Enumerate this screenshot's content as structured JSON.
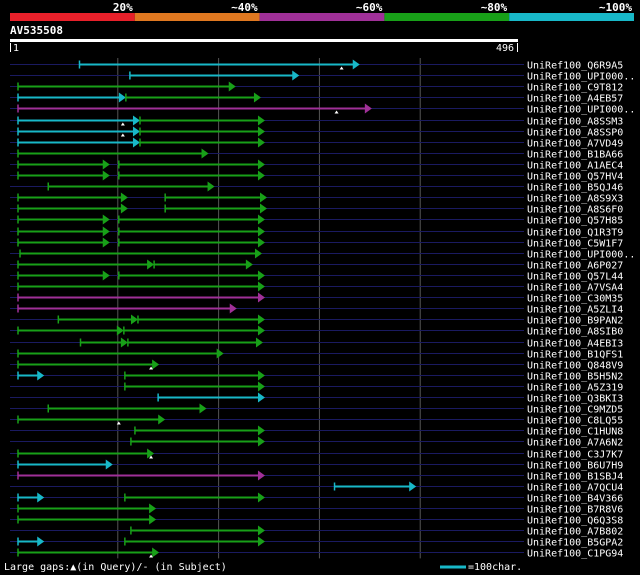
{
  "legend_scale": {
    "ticks": [
      "20%",
      "~40%",
      "~60%",
      "~80%",
      "~100%"
    ],
    "colors": [
      "#e8202a",
      "#e07820",
      "#a03098",
      "#18a018",
      "#18b8c8"
    ]
  },
  "query": {
    "id": "AV535508",
    "start_label": "1",
    "end_label": "496",
    "length": 496
  },
  "colors": {
    "background": "#000000",
    "row_line": "#1a1a60",
    "grid": "#555555",
    "gap_marker": "#ffffff",
    "label": "#ffffff"
  },
  "footer": {
    "gaps_text": "Large gaps:▲(in Query)/- (in Subject)",
    "scale_text": "=100char."
  },
  "chart_data": {
    "type": "alignment",
    "x_axis": {
      "min": 1,
      "max": 496,
      "grid": [
        100,
        200,
        300,
        400
      ]
    },
    "rows": [
      {
        "label": "UniRef100_Q6R9A5",
        "segs": [
          [
            62,
            340,
            "cyan"
          ]
        ],
        "gaps": [
          322
        ]
      },
      {
        "label": "UniRef100_UPI000..",
        "segs": [
          [
            112,
            280,
            "cyan"
          ]
        ],
        "gaps": []
      },
      {
        "label": "UniRef100_C9T812",
        "segs": [
          [
            1,
            217,
            "green"
          ]
        ],
        "gaps": []
      },
      {
        "label": "UniRef100_A4EB57",
        "segs": [
          [
            1,
            108,
            "cyan"
          ],
          [
            108,
            242,
            "green"
          ]
        ],
        "gaps": []
      },
      {
        "label": "UniRef100_UPI000..",
        "segs": [
          [
            1,
            352,
            "purple"
          ]
        ],
        "gaps": [
          317
        ]
      },
      {
        "label": "UniRef100_A8SSM3",
        "segs": [
          [
            1,
            122,
            "cyan"
          ],
          [
            122,
            246,
            "green"
          ]
        ],
        "gaps": [
          105
        ]
      },
      {
        "label": "UniRef100_A8SSP0",
        "segs": [
          [
            1,
            122,
            "cyan"
          ],
          [
            122,
            246,
            "green"
          ]
        ],
        "gaps": [
          105
        ]
      },
      {
        "label": "UniRef100_A7VD49",
        "segs": [
          [
            1,
            122,
            "cyan"
          ],
          [
            122,
            246,
            "green"
          ]
        ],
        "gaps": []
      },
      {
        "label": "UniRef100_B1BA66",
        "segs": [
          [
            1,
            190,
            "green"
          ]
        ],
        "gaps": []
      },
      {
        "label": "UniRef100_A1AEC4",
        "segs": [
          [
            1,
            92,
            "green"
          ],
          [
            101,
            246,
            "green"
          ]
        ],
        "gaps": []
      },
      {
        "label": "UniRef100_Q57HV4",
        "segs": [
          [
            1,
            92,
            "green"
          ],
          [
            101,
            246,
            "green"
          ]
        ],
        "gaps": []
      },
      {
        "label": "UniRef100_B5QJ46",
        "segs": [
          [
            31,
            196,
            "green"
          ]
        ],
        "gaps": []
      },
      {
        "label": "UniRef100_A8S9X3",
        "segs": [
          [
            1,
            110,
            "green"
          ],
          [
            147,
            248,
            "green"
          ]
        ],
        "gaps": []
      },
      {
        "label": "UniRef100_A8S6F0",
        "segs": [
          [
            1,
            110,
            "green"
          ],
          [
            147,
            248,
            "green"
          ]
        ],
        "gaps": []
      },
      {
        "label": "UniRef100_Q57H85",
        "segs": [
          [
            1,
            92,
            "green"
          ],
          [
            101,
            246,
            "green"
          ]
        ],
        "gaps": []
      },
      {
        "label": "UniRef100_Q1R3T9",
        "segs": [
          [
            1,
            92,
            "green"
          ],
          [
            101,
            246,
            "green"
          ]
        ],
        "gaps": []
      },
      {
        "label": "UniRef100_C5W1F7",
        "segs": [
          [
            1,
            92,
            "green"
          ],
          [
            101,
            246,
            "green"
          ]
        ],
        "gaps": []
      },
      {
        "label": "UniRef100_UPI000..",
        "segs": [
          [
            3,
            243,
            "green"
          ]
        ],
        "gaps": []
      },
      {
        "label": "UniRef100_A6P027",
        "segs": [
          [
            1,
            136,
            "green"
          ],
          [
            136,
            234,
            "green"
          ]
        ],
        "gaps": []
      },
      {
        "label": "UniRef100_Q57L44",
        "segs": [
          [
            1,
            92,
            "green"
          ],
          [
            101,
            246,
            "green"
          ]
        ],
        "gaps": []
      },
      {
        "label": "UniRef100_A7VSA4",
        "segs": [
          [
            1,
            246,
            "green"
          ]
        ],
        "gaps": []
      },
      {
        "label": "UniRef100_C30M35",
        "segs": [
          [
            1,
            246,
            "purple"
          ]
        ],
        "gaps": []
      },
      {
        "label": "UniRef100_A5ZLI4",
        "segs": [
          [
            1,
            218,
            "purple"
          ]
        ],
        "gaps": []
      },
      {
        "label": "UniRef100_B9PAN2",
        "segs": [
          [
            41,
            120,
            "green"
          ],
          [
            120,
            246,
            "green"
          ]
        ],
        "gaps": []
      },
      {
        "label": "UniRef100_A8SIB0",
        "segs": [
          [
            1,
            106,
            "green"
          ],
          [
            106,
            246,
            "green"
          ]
        ],
        "gaps": []
      },
      {
        "label": "UniRef100_A4EBI3",
        "segs": [
          [
            63,
            110,
            "green"
          ],
          [
            110,
            244,
            "green"
          ]
        ],
        "gaps": []
      },
      {
        "label": "UniRef100_B1QFS1",
        "segs": [
          [
            1,
            205,
            "green"
          ]
        ],
        "gaps": []
      },
      {
        "label": "UniRef100_Q848V9",
        "segs": [
          [
            1,
            141,
            "green"
          ]
        ],
        "gaps": [
          133
        ]
      },
      {
        "label": "UniRef100_B5H5N2",
        "segs": [
          [
            1,
            27,
            "cyan"
          ],
          [
            107,
            246,
            "green"
          ]
        ],
        "gaps": []
      },
      {
        "label": "UniRef100_A5Z319",
        "segs": [
          [
            107,
            246,
            "green"
          ]
        ],
        "gaps": []
      },
      {
        "label": "UniRef100_Q3BKI3",
        "segs": [
          [
            140,
            246,
            "cyan"
          ]
        ],
        "gaps": []
      },
      {
        "label": "UniRef100_C9MZD5",
        "segs": [
          [
            31,
            188,
            "green"
          ]
        ],
        "gaps": []
      },
      {
        "label": "UniRef100_C8LQ55",
        "segs": [
          [
            1,
            147,
            "green"
          ]
        ],
        "gaps": [
          101
        ]
      },
      {
        "label": "UniRef100_C1HUN8",
        "segs": [
          [
            117,
            246,
            "green"
          ]
        ],
        "gaps": []
      },
      {
        "label": "UniRef100_A7A6N2",
        "segs": [
          [
            113,
            246,
            "green"
          ]
        ],
        "gaps": []
      },
      {
        "label": "UniRef100_C3J7K7",
        "segs": [
          [
            1,
            136,
            "green"
          ]
        ],
        "gaps": [
          133
        ]
      },
      {
        "label": "UniRef100_B6U7H9",
        "segs": [
          [
            1,
            95,
            "cyan"
          ]
        ],
        "gaps": []
      },
      {
        "label": "UniRef100_B1SBJ4",
        "segs": [
          [
            1,
            246,
            "purple"
          ]
        ],
        "gaps": []
      },
      {
        "label": "UniRef100_A7QCU4",
        "segs": [
          [
            315,
            396,
            "cyan"
          ]
        ],
        "gaps": []
      },
      {
        "label": "UniRef100_B4V366",
        "segs": [
          [
            1,
            27,
            "cyan"
          ],
          [
            107,
            246,
            "green"
          ]
        ],
        "gaps": []
      },
      {
        "label": "UniRef100_B7R8V6",
        "segs": [
          [
            1,
            138,
            "green"
          ]
        ],
        "gaps": []
      },
      {
        "label": "UniRef100_Q6Q3S8",
        "segs": [
          [
            1,
            138,
            "green"
          ]
        ],
        "gaps": []
      },
      {
        "label": "UniRef100_A7B802",
        "segs": [
          [
            113,
            246,
            "green"
          ]
        ],
        "gaps": []
      },
      {
        "label": "UniRef100_B5GPA2",
        "segs": [
          [
            1,
            27,
            "cyan"
          ],
          [
            107,
            246,
            "green"
          ]
        ],
        "gaps": []
      },
      {
        "label": "UniRef100_C1PG94",
        "segs": [
          [
            1,
            141,
            "green"
          ]
        ],
        "gaps": [
          133
        ]
      }
    ]
  }
}
